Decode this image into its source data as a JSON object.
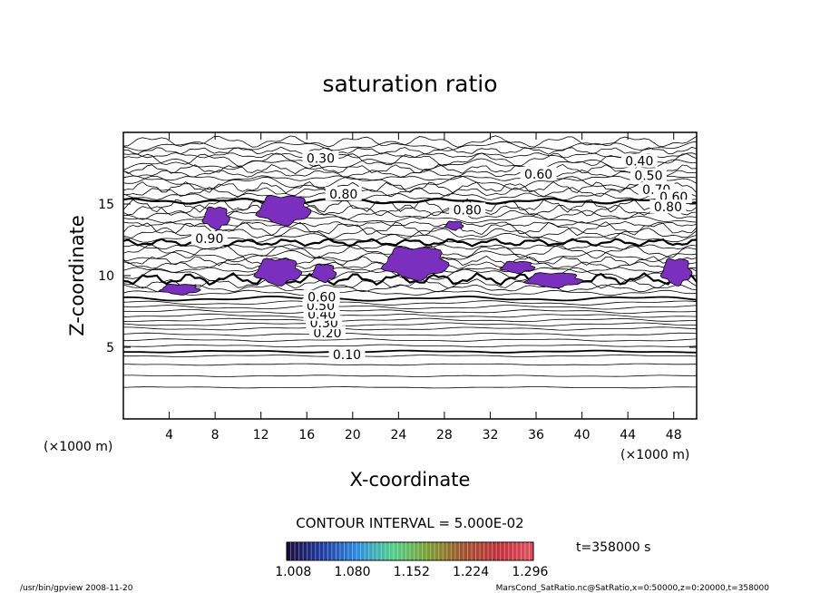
{
  "chart_data": {
    "type": "contour",
    "title": "saturation ratio",
    "xlabel": "X-coordinate",
    "ylabel": "Z-coordinate",
    "x_unit_label_left": "(×1000 m)",
    "x_unit_label_right": "(×1000 m)",
    "xlim": [
      0,
      50
    ],
    "ylim": [
      0,
      20
    ],
    "x_ticks": [
      4,
      8,
      12,
      16,
      20,
      24,
      28,
      32,
      36,
      40,
      44,
      48
    ],
    "y_ticks": [
      5,
      10,
      15
    ],
    "contour_interval_text": "CONTOUR INTERVAL = 5.000E-02",
    "time_label": "t=358000 s",
    "contour_labels": [
      {
        "text": "0.10",
        "x": 19.5,
        "z": 4.5
      },
      {
        "text": "0.20",
        "x": 17.8,
        "z": 6.0
      },
      {
        "text": "0.30",
        "x": 17.5,
        "z": 6.7
      },
      {
        "text": "0.40",
        "x": 17.3,
        "z": 7.3
      },
      {
        "text": "0.50",
        "x": 17.2,
        "z": 7.9
      },
      {
        "text": "0.60",
        "x": 17.3,
        "z": 8.5
      },
      {
        "text": "0.30",
        "x": 17.2,
        "z": 18.2
      },
      {
        "text": "0.60",
        "x": 36.2,
        "z": 17.1
      },
      {
        "text": "0.40",
        "x": 45.0,
        "z": 18.0
      },
      {
        "text": "0.50",
        "x": 45.8,
        "z": 17.0
      },
      {
        "text": "0.70",
        "x": 46.5,
        "z": 16.0
      },
      {
        "text": "0.60",
        "x": 48.0,
        "z": 15.5
      },
      {
        "text": "0.80",
        "x": 47.5,
        "z": 14.8
      },
      {
        "text": "0.80",
        "x": 19.2,
        "z": 15.7
      },
      {
        "text": "0.80",
        "x": 30.0,
        "z": 14.6
      },
      {
        "text": "0.90",
        "x": 7.5,
        "z": 12.6
      }
    ],
    "shaded_region_color": "#7b2fbf",
    "shaded_regions": [
      {
        "x": [
          7.0,
          9.2
        ],
        "z": [
          13.3,
          14.8
        ]
      },
      {
        "x": [
          11.8,
          16.2
        ],
        "z": [
          13.6,
          15.6
        ]
      },
      {
        "x": [
          11.6,
          15.4
        ],
        "z": [
          9.4,
          11.2
        ]
      },
      {
        "x": [
          16.5,
          18.5
        ],
        "z": [
          9.6,
          10.8
        ]
      },
      {
        "x": [
          22.8,
          28.2
        ],
        "z": [
          9.8,
          12.0
        ]
      },
      {
        "x": [
          28.1,
          29.6
        ],
        "z": [
          13.2,
          13.8
        ]
      },
      {
        "x": [
          33.0,
          35.8
        ],
        "z": [
          10.2,
          11.0
        ]
      },
      {
        "x": [
          35.2,
          39.9
        ],
        "z": [
          9.2,
          10.2
        ]
      },
      {
        "x": [
          3.3,
          6.6
        ],
        "z": [
          8.7,
          9.4
        ]
      },
      {
        "x": [
          47.0,
          49.5
        ],
        "z": [
          9.4,
          11.2
        ]
      }
    ],
    "colorbar": {
      "ticks": [
        "1.008",
        "1.080",
        "1.152",
        "1.224",
        "1.296"
      ],
      "range": [
        1.0,
        1.3
      ],
      "colors": [
        "#1a0a3a",
        "#1f3aa0",
        "#2a8be0",
        "#4fd08a",
        "#7aa030",
        "#a0522d",
        "#c0303a",
        "#e05060"
      ]
    },
    "grid": false,
    "legend": "bottom-center"
  },
  "footer": {
    "left": "/usr/bin/gpview   2008-11-20",
    "right": "MarsCond_SatRatio.nc@SatRatio,x=0:50000,z=0:20000,t=358000"
  }
}
